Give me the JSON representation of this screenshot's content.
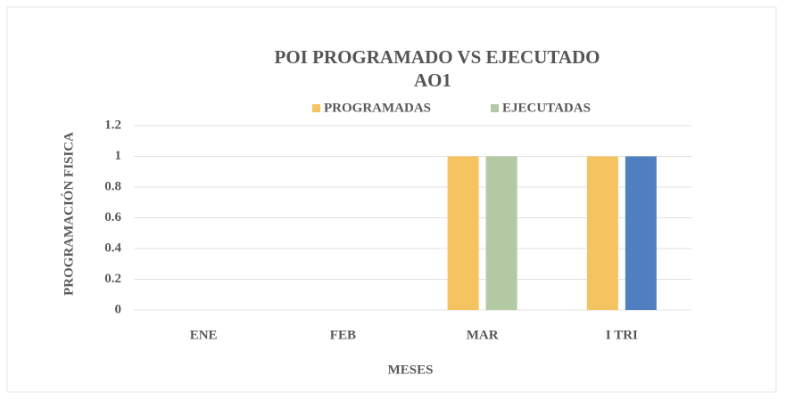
{
  "chart_data": {
    "type": "bar",
    "title": [
      "POI PROGRAMADO VS EJECUTADO",
      "AO1"
    ],
    "x_label": "MESES",
    "y_label": "PROGRAMACIÓN FISICA",
    "categories": [
      "ENE",
      "FEB",
      "MAR",
      "I TRI"
    ],
    "series": [
      {
        "name": "PROGRAMADAS",
        "color": "#f5c35f",
        "values": [
          0,
          0,
          1,
          1
        ]
      },
      {
        "name": "EJECUTADAS",
        "color": "#b2c9a3",
        "colors": [
          "#b2c9a3",
          "#b2c9a3",
          "#b2c9a3",
          "#4f7fc0"
        ],
        "values": [
          0,
          0,
          1,
          1
        ]
      }
    ],
    "ylim": [
      0,
      1.2
    ],
    "yticks": [
      0,
      0.2,
      0.4,
      0.6,
      0.8,
      1,
      1.2
    ],
    "grid": true,
    "legend": "top"
  }
}
